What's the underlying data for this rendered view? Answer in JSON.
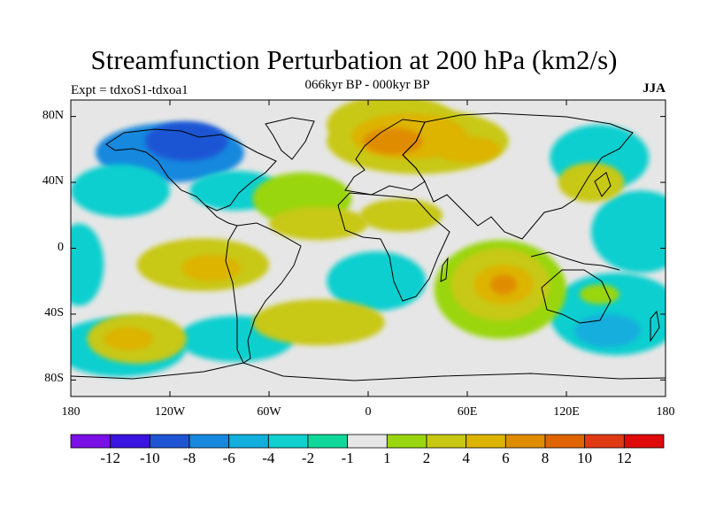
{
  "title": "Streamfunction Perturbation at 200 hPa (km2/s)",
  "subtitle": "066kyr BP - 000kyr BP",
  "experiment": "Expt = tdxoS1-tdxoa1",
  "season": "JJA",
  "map": {
    "projection": "cylindrical equidistant",
    "lon_range": [
      -180,
      180
    ],
    "lat_range": [
      -90,
      90
    ],
    "lat_ticks": [
      {
        "value": 80,
        "label": "80N"
      },
      {
        "value": 40,
        "label": "40N"
      },
      {
        "value": 0,
        "label": "0"
      },
      {
        "value": -40,
        "label": "40S"
      },
      {
        "value": -80,
        "label": "80S"
      }
    ],
    "lon_ticks": [
      {
        "value": -180,
        "label": "180"
      },
      {
        "value": -120,
        "label": "120W"
      },
      {
        "value": -60,
        "label": "60W"
      },
      {
        "value": 0,
        "label": "0"
      },
      {
        "value": 60,
        "label": "60E"
      },
      {
        "value": 120,
        "label": "120E"
      },
      {
        "value": 180,
        "label": "180"
      }
    ]
  },
  "colorbar": {
    "colors": [
      "#7a0fe6",
      "#3a14e0",
      "#1f55d4",
      "#1788de",
      "#12aedc",
      "#0fcfcf",
      "#10d89a",
      "#e6e6e6",
      "#9ad60f",
      "#c8c814",
      "#ddb400",
      "#e08c00",
      "#e06400",
      "#e03a14",
      "#e00a0a"
    ],
    "labels": [
      "-12",
      "-10",
      "-8",
      "-6",
      "-4",
      "-2",
      "-1",
      "1",
      "2",
      "4",
      "6",
      "8",
      "10",
      "12"
    ]
  },
  "field_blobs": [
    {
      "lon": -120,
      "lat": 58,
      "rx": 45,
      "ry": 18,
      "level": 3
    },
    {
      "lon": -110,
      "lat": 65,
      "rx": 25,
      "ry": 12,
      "level": 2
    },
    {
      "lon": -150,
      "lat": 35,
      "rx": 30,
      "ry": 16,
      "level": 5
    },
    {
      "lon": -80,
      "lat": 35,
      "rx": 28,
      "ry": 12,
      "level": 5
    },
    {
      "lon": -175,
      "lat": -10,
      "rx": 15,
      "ry": 25,
      "level": 5
    },
    {
      "lon": -150,
      "lat": -60,
      "rx": 40,
      "ry": 18,
      "level": 5
    },
    {
      "lon": -80,
      "lat": -55,
      "rx": 35,
      "ry": 14,
      "level": 5
    },
    {
      "lon": 5,
      "lat": -20,
      "rx": 30,
      "ry": 18,
      "level": 5
    },
    {
      "lon": 140,
      "lat": 55,
      "rx": 30,
      "ry": 20,
      "level": 5
    },
    {
      "lon": 150,
      "lat": -40,
      "rx": 40,
      "ry": 25,
      "level": 5
    },
    {
      "lon": 145,
      "lat": -50,
      "rx": 20,
      "ry": 10,
      "level": 4
    },
    {
      "lon": 165,
      "lat": 10,
      "rx": 30,
      "ry": 25,
      "level": 5
    },
    {
      "lon": 15,
      "lat": 75,
      "rx": 40,
      "ry": 18,
      "level": 9
    },
    {
      "lon": 30,
      "lat": 65,
      "rx": 55,
      "ry": 20,
      "level": 9
    },
    {
      "lon": 25,
      "lat": 68,
      "rx": 35,
      "ry": 14,
      "level": 10
    },
    {
      "lon": 15,
      "lat": 65,
      "rx": 18,
      "ry": 8,
      "level": 11
    },
    {
      "lon": 60,
      "lat": 60,
      "rx": 20,
      "ry": 8,
      "level": 10
    },
    {
      "lon": -40,
      "lat": 30,
      "rx": 30,
      "ry": 16,
      "level": 8
    },
    {
      "lon": -30,
      "lat": 15,
      "rx": 30,
      "ry": 10,
      "level": 9
    },
    {
      "lon": 20,
      "lat": 20,
      "rx": 25,
      "ry": 10,
      "level": 9
    },
    {
      "lon": -100,
      "lat": -10,
      "rx": 40,
      "ry": 16,
      "level": 9
    },
    {
      "lon": -95,
      "lat": -12,
      "rx": 18,
      "ry": 8,
      "level": 10
    },
    {
      "lon": -140,
      "lat": -55,
      "rx": 30,
      "ry": 15,
      "level": 9
    },
    {
      "lon": -145,
      "lat": -55,
      "rx": 15,
      "ry": 7,
      "level": 10
    },
    {
      "lon": -30,
      "lat": -45,
      "rx": 40,
      "ry": 14,
      "level": 9
    },
    {
      "lon": 80,
      "lat": -25,
      "rx": 40,
      "ry": 30,
      "level": 8
    },
    {
      "lon": 80,
      "lat": -22,
      "rx": 30,
      "ry": 22,
      "level": 9
    },
    {
      "lon": 82,
      "lat": -22,
      "rx": 18,
      "ry": 12,
      "level": 10
    },
    {
      "lon": 82,
      "lat": -22,
      "rx": 8,
      "ry": 6,
      "level": 11
    },
    {
      "lon": 135,
      "lat": 40,
      "rx": 20,
      "ry": 12,
      "level": 9
    },
    {
      "lon": 140,
      "lat": -28,
      "rx": 12,
      "ry": 6,
      "level": 8
    }
  ]
}
